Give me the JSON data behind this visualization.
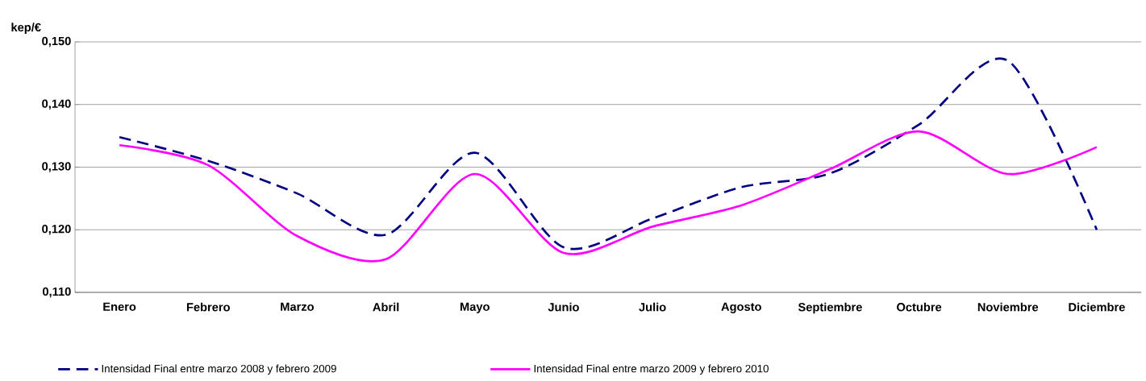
{
  "chart_data": {
    "type": "line",
    "ylabel": "kep/€",
    "categories": [
      "Enero",
      "Febrero",
      "Marzo",
      "Abril",
      "Mayo",
      "Junio",
      "Julio",
      "Agosto",
      "Septiembre",
      "Octubre",
      "Noviembre",
      "Diciembre"
    ],
    "series": [
      {
        "name": "Intensidad Final entre marzo 2008 y febrero 2009",
        "color": "#000080",
        "line_style": "dashed",
        "values": [
          0.1348,
          0.131,
          0.1258,
          0.1192,
          0.1323,
          0.1172,
          0.1218,
          0.1268,
          0.129,
          0.1368,
          0.147,
          0.12
        ]
      },
      {
        "name": "Intensidad Final entre marzo 2009 y febrero 2010",
        "color": "#ff00ff",
        "line_style": "solid",
        "values": [
          0.1335,
          0.1303,
          0.119,
          0.1153,
          0.1289,
          0.1163,
          0.1205,
          0.1239,
          0.1297,
          0.1357,
          0.1289,
          0.1332
        ]
      }
    ],
    "ylim": [
      0.11,
      0.15
    ],
    "yticks": [
      {
        "value": 0.11,
        "label": "0,110"
      },
      {
        "value": 0.12,
        "label": "0,120"
      },
      {
        "value": 0.13,
        "label": "0,130"
      },
      {
        "value": 0.14,
        "label": "0,140"
      },
      {
        "value": 0.15,
        "label": "0,150"
      }
    ],
    "grid": "y",
    "legend": "bottom",
    "marker": "none"
  }
}
